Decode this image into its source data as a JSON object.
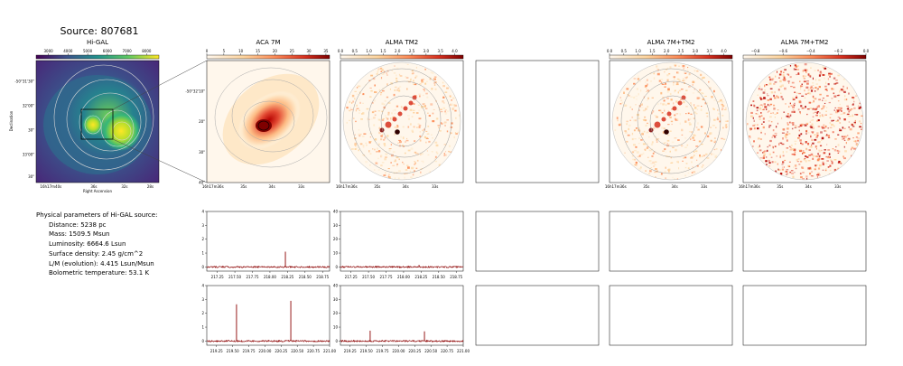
{
  "page": {
    "source_title": "Source: 807681",
    "info_heading": "Physical parameters of Hi-GAL source:",
    "info_lines": [
      "Distance: 5238 pc",
      "Mass: 1509.5 Msun",
      "Luminosity: 6664.6 Lsun",
      "Surface density: 2.45 g/cm^2",
      "L/M (evolution): 4.415 Lsun/Msun",
      "Bolometric temperature: 53.1 K"
    ]
  },
  "colors": {
    "spectrum_line": "#8b0000",
    "cmap_start": "#fff7ec",
    "cmap_end": "#7f0000",
    "higal_cmap_start": "#440154",
    "higal_cmap_end": "#fde725"
  },
  "chart_data": [
    {
      "type": "heatmap",
      "title": "Hi-GAL",
      "colorbar_ticks": [
        "3000",
        "4000",
        "5000",
        "6000",
        "7000",
        "8000"
      ],
      "xlabel": "Right Ascension",
      "ylabel": "Declination",
      "xticks": [
        "16h17m40s",
        "36s",
        "32s",
        "28s"
      ],
      "yticks": [
        "-50°31'30\"",
        "32'00\"",
        "30\"",
        "33'00\"",
        "30\""
      ]
    },
    {
      "type": "heatmap",
      "title": "ACA 7M",
      "colorbar_ticks": [
        "0",
        "5",
        "10",
        "15",
        "20",
        "25",
        "30",
        "35"
      ],
      "xticks": [
        "16h17m36s",
        "35s",
        "34s",
        "33s"
      ],
      "yticks": [
        "-50°32'10\"",
        "20\"",
        "30\"",
        "40\""
      ]
    },
    {
      "type": "heatmap",
      "title": "ALMA TM2",
      "colorbar_ticks": [
        "0.0",
        "0.5",
        "1.0",
        "1.5",
        "2.0",
        "2.5",
        "3.0",
        "3.5",
        "4.0"
      ],
      "xticks": [
        "16h17m36s",
        "35s",
        "34s",
        "33s"
      ]
    },
    {
      "type": "heatmap",
      "title": "ALMA 7M+TM2",
      "colorbar_ticks": [
        "0.0",
        "0.5",
        "1.0",
        "1.5",
        "2.0",
        "2.5",
        "3.0",
        "3.5",
        "4.0"
      ],
      "xticks": [
        "16h17m36s",
        "35s",
        "34s",
        "33s"
      ]
    },
    {
      "type": "heatmap",
      "title": "ALMA 7M+TM2",
      "colorbar_ticks": [
        "−0.8",
        "−0.6",
        "−0.4",
        "−0.2",
        "0.0"
      ],
      "xticks": [
        "16h17m36s",
        "35s",
        "34s",
        "33s"
      ]
    },
    {
      "type": "line",
      "xlim": [
        217.1,
        218.85
      ],
      "ylim": [
        -0.3,
        4
      ],
      "xticks": [
        "217.25",
        "217.50",
        "217.75",
        "218.00",
        "218.25",
        "218.50",
        "218.75"
      ],
      "yticks": [
        "0",
        "1",
        "2",
        "3",
        "4"
      ],
      "peaks": [
        {
          "x": 218.22,
          "y": 1.1
        }
      ],
      "series": [
        {
          "values": [
            0.0
          ]
        }
      ]
    },
    {
      "type": "line",
      "xlim": [
        217.1,
        218.85
      ],
      "ylim": [
        -3,
        40
      ],
      "xticks": [
        "217.25",
        "217.50",
        "217.75",
        "218.00",
        "218.25",
        "218.50",
        "218.75"
      ],
      "yticks": [
        "0",
        "10",
        "20",
        "30",
        "40"
      ],
      "peaks": [
        {
          "x": 218.22,
          "y": 1.5
        }
      ],
      "series": [
        {
          "values": [
            0.0
          ]
        }
      ]
    },
    {
      "type": "line",
      "xlim": [
        219.1,
        221.0
      ],
      "ylim": [
        -0.3,
        4
      ],
      "xticks": [
        "219.25",
        "219.50",
        "219.75",
        "220.00",
        "220.25",
        "220.50",
        "220.75",
        "221.00"
      ],
      "yticks": [
        "0",
        "1",
        "2",
        "3",
        "4"
      ],
      "peaks": [
        {
          "x": 219.56,
          "y": 2.65
        },
        {
          "x": 220.4,
          "y": 2.9
        }
      ],
      "series": [
        {
          "values": [
            0.0
          ]
        }
      ]
    },
    {
      "type": "line",
      "xlim": [
        219.1,
        221.0
      ],
      "ylim": [
        -3,
        40
      ],
      "xticks": [
        "219.25",
        "219.50",
        "219.75",
        "220.00",
        "220.25",
        "220.50",
        "220.75",
        "221.00"
      ],
      "yticks": [
        "0",
        "10",
        "20",
        "30",
        "40"
      ],
      "peaks": [
        {
          "x": 219.56,
          "y": 7.5
        },
        {
          "x": 220.4,
          "y": 7.0
        }
      ],
      "series": [
        {
          "values": [
            0.0
          ]
        }
      ]
    }
  ]
}
